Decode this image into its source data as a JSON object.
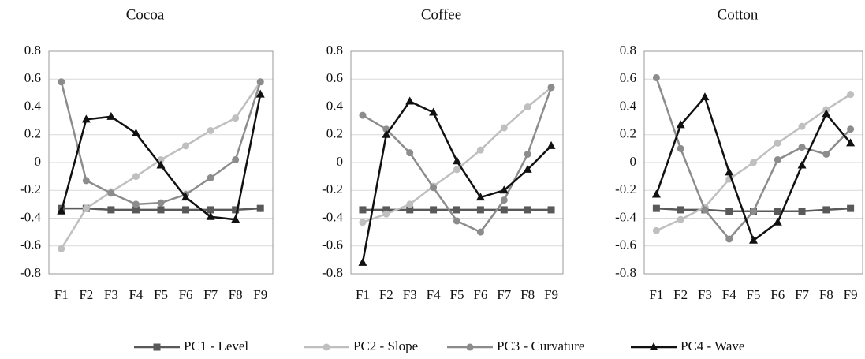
{
  "chart_data": [
    {
      "type": "line",
      "title": "Cocoa",
      "categories": [
        "F1",
        "F2",
        "F3",
        "F4",
        "F5",
        "F6",
        "F7",
        "F8",
        "F9"
      ],
      "ylim": [
        -0.8,
        0.8
      ],
      "yticks": [
        -0.8,
        -0.6,
        -0.4,
        -0.2,
        0,
        0.2,
        0.4,
        0.6,
        0.8
      ],
      "grid": true,
      "series": [
        {
          "name": "PC1 - Level",
          "color": "#595959",
          "marker": "square",
          "values": [
            -0.33,
            -0.33,
            -0.34,
            -0.34,
            -0.34,
            -0.34,
            -0.34,
            -0.34,
            -0.33
          ]
        },
        {
          "name": "PC2 - Slope",
          "color": "#bfbfbf",
          "marker": "circle",
          "values": [
            -0.62,
            -0.33,
            -0.21,
            -0.1,
            0.02,
            0.12,
            0.23,
            0.32,
            0.58
          ]
        },
        {
          "name": "PC3 - Curvature",
          "color": "#8c8c8c",
          "marker": "circle",
          "values": [
            0.58,
            -0.13,
            -0.22,
            -0.3,
            -0.29,
            -0.23,
            -0.11,
            0.02,
            0.58
          ]
        },
        {
          "name": "PC4 - Wave",
          "color": "#111111",
          "marker": "triangle",
          "values": [
            -0.35,
            0.31,
            0.33,
            0.21,
            -0.02,
            -0.25,
            -0.39,
            -0.41,
            0.49
          ]
        }
      ]
    },
    {
      "type": "line",
      "title": "Coffee",
      "categories": [
        "F1",
        "F2",
        "F3",
        "F4",
        "F5",
        "F6",
        "F7",
        "F8",
        "F9"
      ],
      "ylim": [
        -0.8,
        0.8
      ],
      "yticks": [
        -0.8,
        -0.6,
        -0.4,
        -0.2,
        0,
        0.2,
        0.4,
        0.6,
        0.8
      ],
      "grid": true,
      "series": [
        {
          "color": "#595959",
          "marker": "square",
          "values": [
            -0.34,
            -0.34,
            -0.34,
            -0.34,
            -0.34,
            -0.34,
            -0.34,
            -0.34,
            -0.34
          ]
        },
        {
          "color": "#bfbfbf",
          "marker": "circle",
          "values": [
            -0.43,
            -0.37,
            -0.3,
            -0.17,
            -0.05,
            0.09,
            0.25,
            0.4,
            0.54
          ]
        },
        {
          "color": "#8c8c8c",
          "marker": "circle",
          "values": [
            0.34,
            0.24,
            0.07,
            -0.18,
            -0.42,
            -0.5,
            -0.27,
            0.06,
            0.54
          ]
        },
        {
          "color": "#111111",
          "marker": "triangle",
          "values": [
            -0.72,
            0.2,
            0.44,
            0.36,
            0.01,
            -0.25,
            -0.2,
            -0.05,
            0.12
          ]
        }
      ]
    },
    {
      "type": "line",
      "title": "Cotton",
      "categories": [
        "F1",
        "F2",
        "F3",
        "F4",
        "F5",
        "F6",
        "F7",
        "F8",
        "F9"
      ],
      "ylim": [
        -0.8,
        0.8
      ],
      "yticks": [
        -0.8,
        -0.6,
        -0.4,
        -0.2,
        0,
        0.2,
        0.4,
        0.6,
        0.8
      ],
      "grid": true,
      "series": [
        {
          "color": "#595959",
          "marker": "square",
          "values": [
            -0.33,
            -0.34,
            -0.34,
            -0.35,
            -0.35,
            -0.35,
            -0.35,
            -0.34,
            -0.33
          ]
        },
        {
          "color": "#bfbfbf",
          "marker": "circle",
          "values": [
            -0.49,
            -0.41,
            -0.32,
            -0.12,
            0.0,
            0.14,
            0.26,
            0.38,
            0.49
          ]
        },
        {
          "color": "#8c8c8c",
          "marker": "circle",
          "values": [
            0.61,
            0.1,
            -0.34,
            -0.55,
            -0.35,
            0.02,
            0.11,
            0.06,
            0.24
          ]
        },
        {
          "color": "#111111",
          "marker": "triangle",
          "values": [
            -0.23,
            0.27,
            0.47,
            -0.07,
            -0.56,
            -0.43,
            -0.02,
            0.35,
            0.14
          ]
        }
      ]
    }
  ]
}
